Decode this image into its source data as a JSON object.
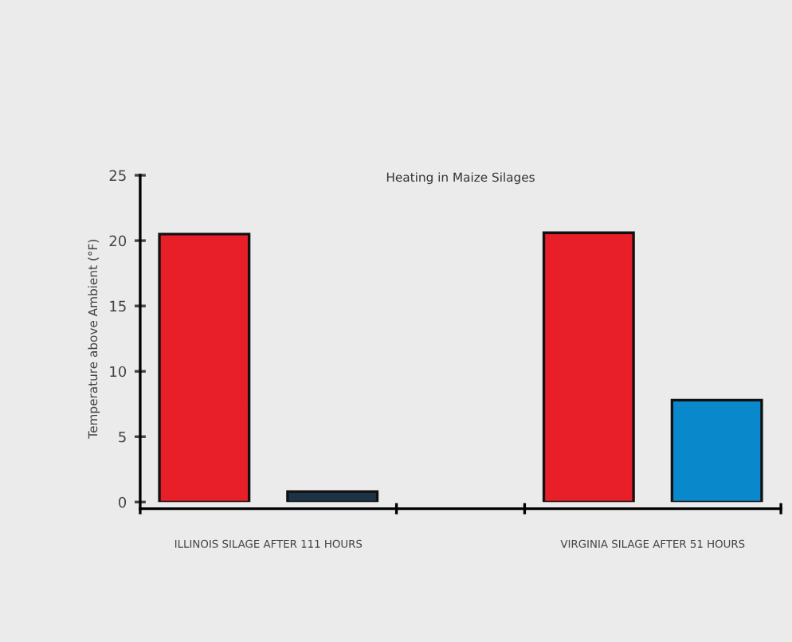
{
  "chart_data": {
    "type": "bar",
    "title": "Heating in Maize Silages",
    "ylabel": "Temperature above Ambient (°F)",
    "categories": [
      "ILLINOIS SILAGE AFTER 111 HOURS",
      "VIRGINIA SILAGE AFTER 51 HOURS"
    ],
    "series": [
      {
        "color": "#e81e28",
        "values": [
          20.5,
          20.6
        ]
      },
      {
        "colors": [
          "#1d3345",
          "#0a88cc"
        ],
        "values": [
          0.8,
          7.8
        ]
      }
    ],
    "ylim": [
      0,
      25
    ],
    "yticks": [
      0,
      5,
      10,
      15,
      20,
      25
    ],
    "grid": false,
    "legend": false
  }
}
